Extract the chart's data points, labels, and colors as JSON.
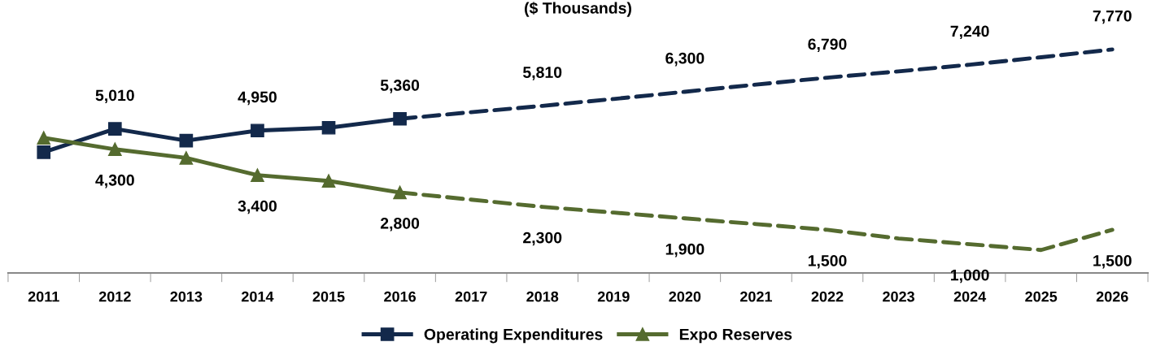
{
  "chart_data": {
    "type": "line",
    "title": "($ Thousands)",
    "categories": [
      "2011",
      "2012",
      "2013",
      "2014",
      "2015",
      "2016",
      "2017",
      "2018",
      "2019",
      "2020",
      "2021",
      "2022",
      "2023",
      "2024",
      "2025",
      "2026"
    ],
    "tick_labels": "x",
    "grid": false,
    "legend": "bottom",
    "series": [
      {
        "name": "Operating Expenditures",
        "color": "#13294b",
        "marker": "square",
        "line_style": "solid",
        "values": [
          4200,
          5010,
          4600,
          4950,
          5050,
          5360,
          null,
          null,
          null,
          null,
          null,
          null,
          null,
          null,
          null,
          null
        ],
        "value_labels": [
          null,
          "5,010",
          null,
          "4,950",
          null,
          "5,360",
          null,
          null,
          null,
          null,
          null,
          null,
          null,
          null,
          null,
          null
        ]
      },
      {
        "color": "#13294b",
        "marker": "none",
        "line_style": "dashed",
        "values": [
          null,
          null,
          null,
          null,
          null,
          5360,
          5590,
          5810,
          6050,
          6300,
          6550,
          6790,
          7010,
          7240,
          7500,
          7770
        ],
        "value_labels": [
          null,
          null,
          null,
          null,
          null,
          null,
          null,
          "5,810",
          null,
          "6,300",
          null,
          "6,790",
          null,
          "7,240",
          null,
          "7,770"
        ]
      },
      {
        "name": "Expo Reserves",
        "color": "#556b2f",
        "marker": "triangle",
        "line_style": "solid",
        "values": [
          4700,
          4300,
          4000,
          3400,
          3200,
          2800,
          null,
          null,
          null,
          null,
          null,
          null,
          null,
          null,
          null,
          null
        ],
        "value_labels": [
          null,
          "4,300",
          null,
          "3,400",
          null,
          "2,800",
          null,
          null,
          null,
          null,
          null,
          null,
          null,
          null,
          null,
          null
        ]
      },
      {
        "color": "#556b2f",
        "marker": "none",
        "line_style": "dashed",
        "values": [
          null,
          null,
          null,
          null,
          null,
          2800,
          2550,
          2300,
          2100,
          1900,
          1700,
          1500,
          1200,
          1000,
          800,
          1500
        ],
        "value_labels": [
          null,
          null,
          null,
          null,
          null,
          null,
          null,
          "2,300",
          null,
          "1,900",
          null,
          "1,500",
          null,
          "1,000",
          null,
          "1,500"
        ]
      }
    ]
  }
}
